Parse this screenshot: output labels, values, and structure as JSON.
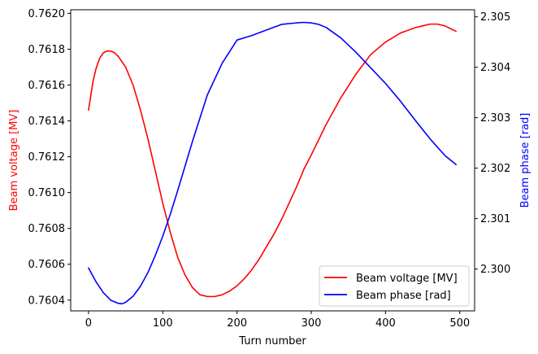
{
  "chart_data": {
    "type": "line",
    "xlabel": "Turn number",
    "ylabel_left": "Beam voltage [MV]",
    "ylabel_right": "Beam phase [rad]",
    "xlim": [
      -24,
      520
    ],
    "ylim_left": [
      0.76034,
      0.76202
    ],
    "ylim_right": [
      2.29917,
      2.30514
    ],
    "x_ticks": [
      0,
      100,
      200,
      300,
      400,
      500
    ],
    "y_ticks_left": [
      0.7604,
      0.7606,
      0.7608,
      0.761,
      0.7612,
      0.7614,
      0.7616,
      0.7618,
      0.762
    ],
    "y_ticks_left_labels": [
      "0.7604",
      "0.7606",
      "0.7608",
      "0.7610",
      "0.7612",
      "0.7614",
      "0.7616",
      "0.7618",
      "0.7620"
    ],
    "y_ticks_right": [
      2.3,
      2.301,
      2.302,
      2.303,
      2.304,
      2.305
    ],
    "y_ticks_right_labels": [
      "2.300",
      "2.301",
      "2.302",
      "2.303",
      "2.304",
      "2.305"
    ],
    "grid": false,
    "legend_position": "lower-right",
    "series": [
      {
        "name": "Beam voltage [MV]",
        "color": "#ff0000",
        "axis": "left",
        "x": [
          0,
          3,
          6,
          10,
          15,
          20,
          25,
          28,
          30,
          35,
          40,
          50,
          60,
          70,
          80,
          90,
          100,
          110,
          120,
          130,
          140,
          150,
          160,
          170,
          180,
          190,
          200,
          210,
          220,
          230,
          240,
          250,
          260,
          270,
          280,
          290,
          300,
          320,
          340,
          360,
          380,
          400,
          420,
          440,
          450,
          460,
          470,
          480,
          490,
          495
        ],
        "y": [
          0.76146,
          0.76154,
          0.76162,
          0.76169,
          0.76175,
          0.76178,
          0.76179,
          0.76179,
          0.76179,
          0.76178,
          0.76176,
          0.7617,
          0.7616,
          0.76146,
          0.7613,
          0.76112,
          0.76094,
          0.76078,
          0.76064,
          0.76054,
          0.76047,
          0.76043,
          0.76042,
          0.76042,
          0.76043,
          0.76045,
          0.76048,
          0.76052,
          0.76057,
          0.76063,
          0.7607,
          0.76077,
          0.76085,
          0.76094,
          0.76103,
          0.76113,
          0.76121,
          0.76138,
          0.76153,
          0.76166,
          0.76177,
          0.76184,
          0.76189,
          0.76192,
          0.76193,
          0.76194,
          0.76194,
          0.76193,
          0.76191,
          0.7619
        ]
      },
      {
        "name": "Beam phase [rad]",
        "color": "#0000ff",
        "axis": "right",
        "x": [
          0,
          10,
          20,
          30,
          40,
          45,
          50,
          60,
          70,
          80,
          90,
          100,
          110,
          120,
          140,
          160,
          180,
          200,
          220,
          240,
          260,
          280,
          290,
          300,
          310,
          320,
          340,
          360,
          380,
          400,
          420,
          440,
          460,
          480,
          495
        ],
        "y": [
          2.30002,
          2.29975,
          2.29953,
          2.29938,
          2.29932,
          2.29931,
          2.29934,
          2.29946,
          2.29966,
          2.29993,
          2.30027,
          2.30065,
          2.30108,
          2.30155,
          2.30253,
          2.30345,
          2.30408,
          2.30454,
          2.30463,
          2.30474,
          2.30485,
          2.30488,
          2.30489,
          2.30488,
          2.30485,
          2.30479,
          2.30458,
          2.3043,
          2.30399,
          2.30368,
          2.30333,
          2.30295,
          2.30258,
          2.30225,
          2.30207
        ]
      }
    ]
  }
}
